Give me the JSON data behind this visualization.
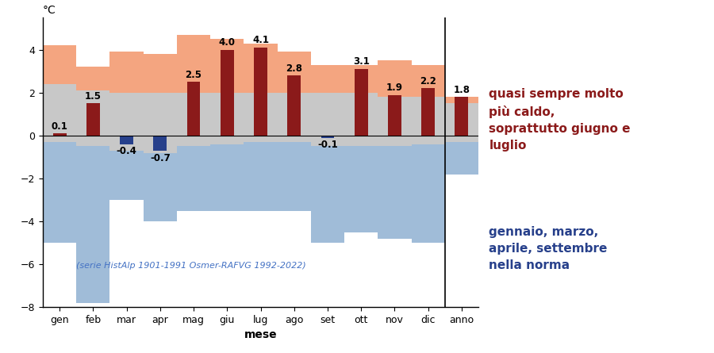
{
  "months": [
    "gen",
    "feb",
    "mar",
    "apr",
    "mag",
    "giu",
    "lug",
    "ago",
    "set",
    "ott",
    "nov",
    "dic",
    "anno"
  ],
  "bar_values": [
    0.1,
    1.5,
    -0.4,
    -0.7,
    2.5,
    4.0,
    4.1,
    2.8,
    -0.1,
    3.1,
    1.9,
    2.2,
    1.8
  ],
  "p10": [
    -0.3,
    -0.5,
    -0.7,
    -0.8,
    -0.5,
    -0.4,
    -0.3,
    -0.3,
    -0.5,
    -0.5,
    -0.5,
    -0.4,
    -0.3
  ],
  "p90": [
    2.4,
    2.1,
    2.0,
    2.0,
    2.0,
    2.0,
    2.0,
    2.0,
    2.0,
    2.0,
    1.8,
    1.8,
    1.5
  ],
  "max_val": [
    4.2,
    3.2,
    3.9,
    3.8,
    4.7,
    4.5,
    4.3,
    3.9,
    3.3,
    3.3,
    3.5,
    3.3,
    1.8
  ],
  "min_val": [
    -5.0,
    -7.8,
    -3.0,
    -4.0,
    -3.5,
    -3.5,
    -3.5,
    -3.5,
    -5.0,
    -4.5,
    -4.8,
    -5.0,
    -1.8
  ],
  "bar_color_pos": "#8B1A1A",
  "bar_color_neg": "#27408B",
  "orange_color": "#F4A580",
  "gray_color": "#C8C8C8",
  "blue_color": "#A0BCD8",
  "ylim": [
    -8,
    5.5
  ],
  "ylabel": "°C",
  "xlabel": "mese",
  "annotation_text": "(serie HistAlp 1901-1991 Osmer-RAFVG 1992-2022)",
  "annotation_color": "#4472C4",
  "text1": "quasi sempre molto\npiù caldo,\nsoprattutto giugno e\nluglio",
  "text2": "gennaio, marzo,\naprile, settembre\nnella norma"
}
